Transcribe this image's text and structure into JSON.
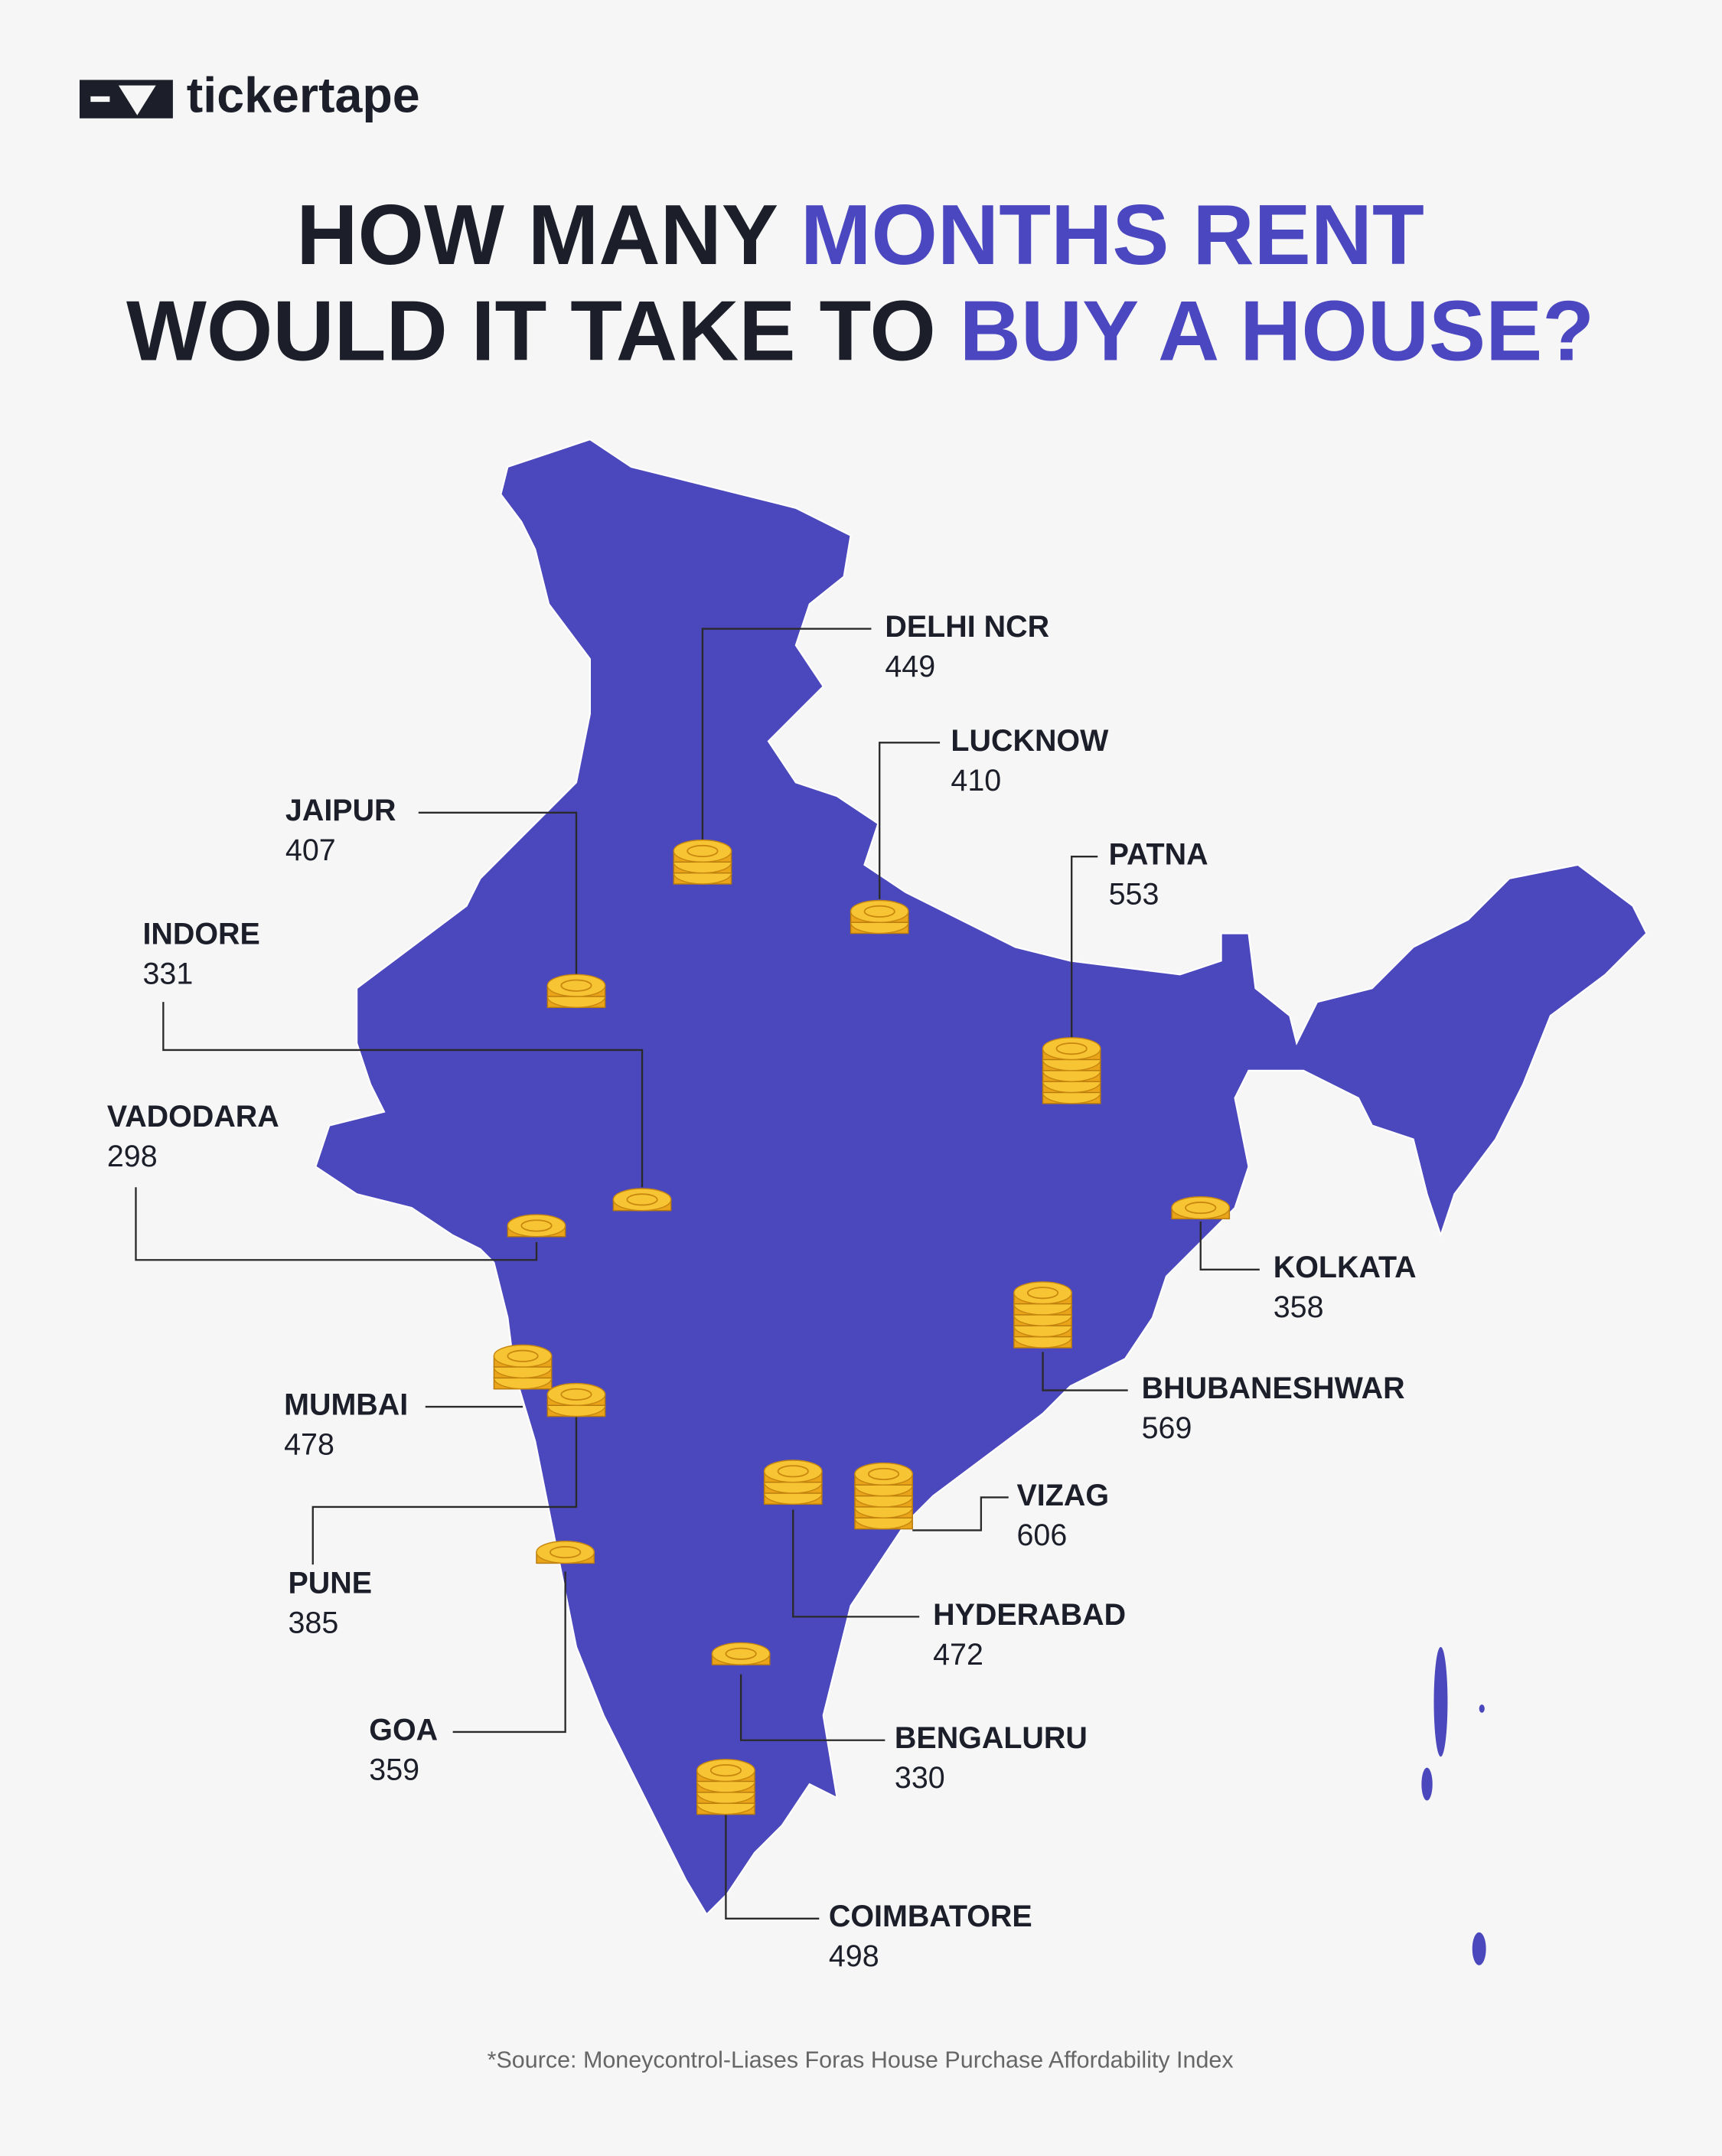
{
  "logo": "tickertape",
  "title": {
    "line1": [
      "HOW MANY ",
      "MONTHS RENT"
    ],
    "line2": [
      "WOULD IT TAKE TO ",
      "BUY A HOUSE?"
    ]
  },
  "cities": [
    {
      "name": "DELHI NCR",
      "value": 449
    },
    {
      "name": "LUCKNOW",
      "value": 410
    },
    {
      "name": "JAIPUR",
      "value": 407
    },
    {
      "name": "PATNA",
      "value": 553
    },
    {
      "name": "INDORE",
      "value": 331
    },
    {
      "name": "VADODARA",
      "value": 298
    },
    {
      "name": "KOLKATA",
      "value": 358
    },
    {
      "name": "BHUBANESHWAR",
      "value": 569
    },
    {
      "name": "MUMBAI",
      "value": 478
    },
    {
      "name": "PUNE",
      "value": 385
    },
    {
      "name": "GOA",
      "value": 359
    },
    {
      "name": "VIZAG",
      "value": 606
    },
    {
      "name": "HYDERABAD",
      "value": 472
    },
    {
      "name": "BENGALURU",
      "value": 330
    },
    {
      "name": "COIMBATORE",
      "value": 498
    }
  ],
  "source": "*Source: Moneycontrol-Liases Foras House Purchase Affordability Index"
}
